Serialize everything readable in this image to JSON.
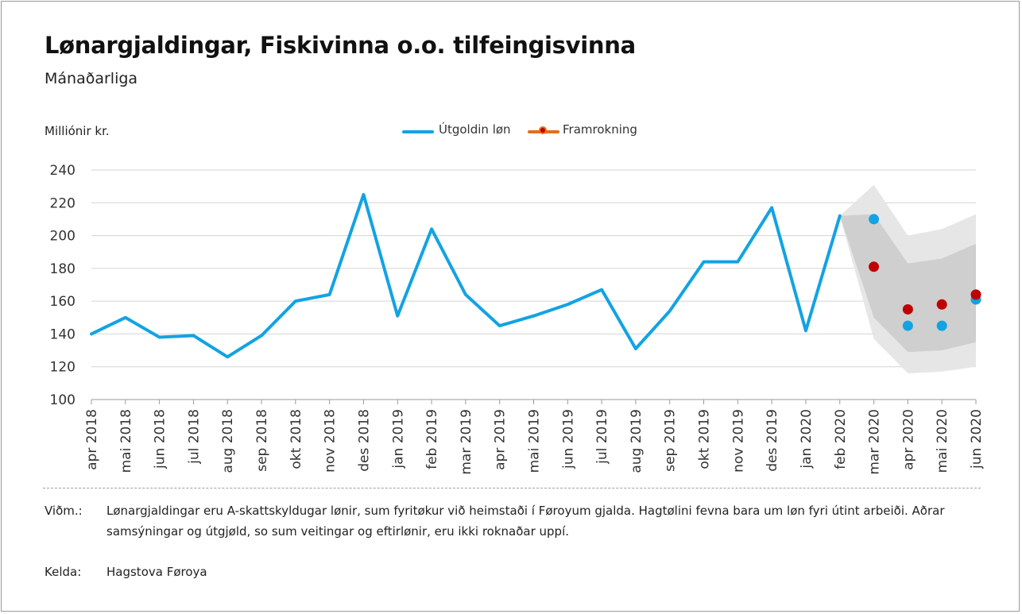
{
  "header": {
    "title": "Lønargjaldingar, Fiskivinna o.o. tilfeingisvinna",
    "subtitle": "Mánaðarliga"
  },
  "chart_data": {
    "type": "line",
    "ylabel": "Milliónir kr.",
    "ylim": [
      100,
      240
    ],
    "yticks": [
      100,
      120,
      140,
      160,
      180,
      200,
      220,
      240
    ],
    "grid": true,
    "legend_position": "top-center",
    "categories": [
      "apr 2018",
      "mai 2018",
      "jun 2018",
      "jul 2018",
      "aug 2018",
      "sep 2018",
      "okt 2018",
      "nov 2018",
      "des 2018",
      "jan 2019",
      "feb 2019",
      "mar 2019",
      "apr 2019",
      "mai 2019",
      "jun 2019",
      "jul 2019",
      "aug 2019",
      "sep 2019",
      "okt 2019",
      "nov 2019",
      "des 2019",
      "jan 2020",
      "feb 2020",
      "mar 2020",
      "apr 2020",
      "mai 2020",
      "jun 2020"
    ],
    "series": [
      {
        "name": "Útgoldin løn",
        "color": "#12a3e3",
        "style": "line",
        "values": [
          140,
          150,
          138,
          139,
          126,
          139,
          160,
          164,
          225,
          151,
          204,
          164,
          145,
          151,
          158,
          167,
          131,
          154,
          184,
          184,
          217,
          142,
          212,
          null,
          null,
          null,
          null
        ]
      },
      {
        "name": "Útgoldin løn (punktir)",
        "color": "#12a3e3",
        "style": "dots",
        "values": [
          null,
          null,
          null,
          null,
          null,
          null,
          null,
          null,
          null,
          null,
          null,
          null,
          null,
          null,
          null,
          null,
          null,
          null,
          null,
          null,
          null,
          null,
          null,
          210,
          145,
          145,
          161
        ]
      },
      {
        "name": "Framrokning",
        "color": "#c00000",
        "style": "dots",
        "values": [
          null,
          null,
          null,
          null,
          null,
          null,
          null,
          null,
          null,
          null,
          null,
          null,
          null,
          null,
          null,
          null,
          null,
          null,
          null,
          null,
          null,
          null,
          null,
          181,
          155,
          158,
          164
        ]
      }
    ],
    "bands": [
      {
        "color": "#e6e6e6",
        "x": [
          "feb 2020",
          "mar 2020",
          "apr 2020",
          "mai 2020",
          "jun 2020"
        ],
        "upper": [
          212,
          231,
          200,
          204,
          213
        ],
        "lower": [
          212,
          137,
          116,
          117,
          120
        ]
      },
      {
        "color": "#cfcfcf",
        "x": [
          "feb 2020",
          "mar 2020",
          "apr 2020",
          "mai 2020",
          "jun 2020"
        ],
        "upper": [
          212,
          213,
          183,
          186,
          195
        ],
        "lower": [
          212,
          150,
          129,
          130,
          135
        ]
      }
    ]
  },
  "legend": {
    "items": [
      {
        "label": "Útgoldin løn",
        "color": "#12a3e3"
      },
      {
        "label": "Framrokning",
        "color": "#e07020"
      }
    ]
  },
  "notes": {
    "note_label": "Viðm.:",
    "note_text": "Lønargjaldingar eru A-skattskyldugar lønir, sum fyritøkur við heimstaði í Føroyum gjalda. Hagtølini fevna bara um løn fyri útint arbeiði. Aðrar samsýningar og útgjøld, so sum veitingar og eftirlønir, eru ikki roknaðar uppí.",
    "source_label": "Kelda:",
    "source_text": "Hagstova Føroya"
  }
}
